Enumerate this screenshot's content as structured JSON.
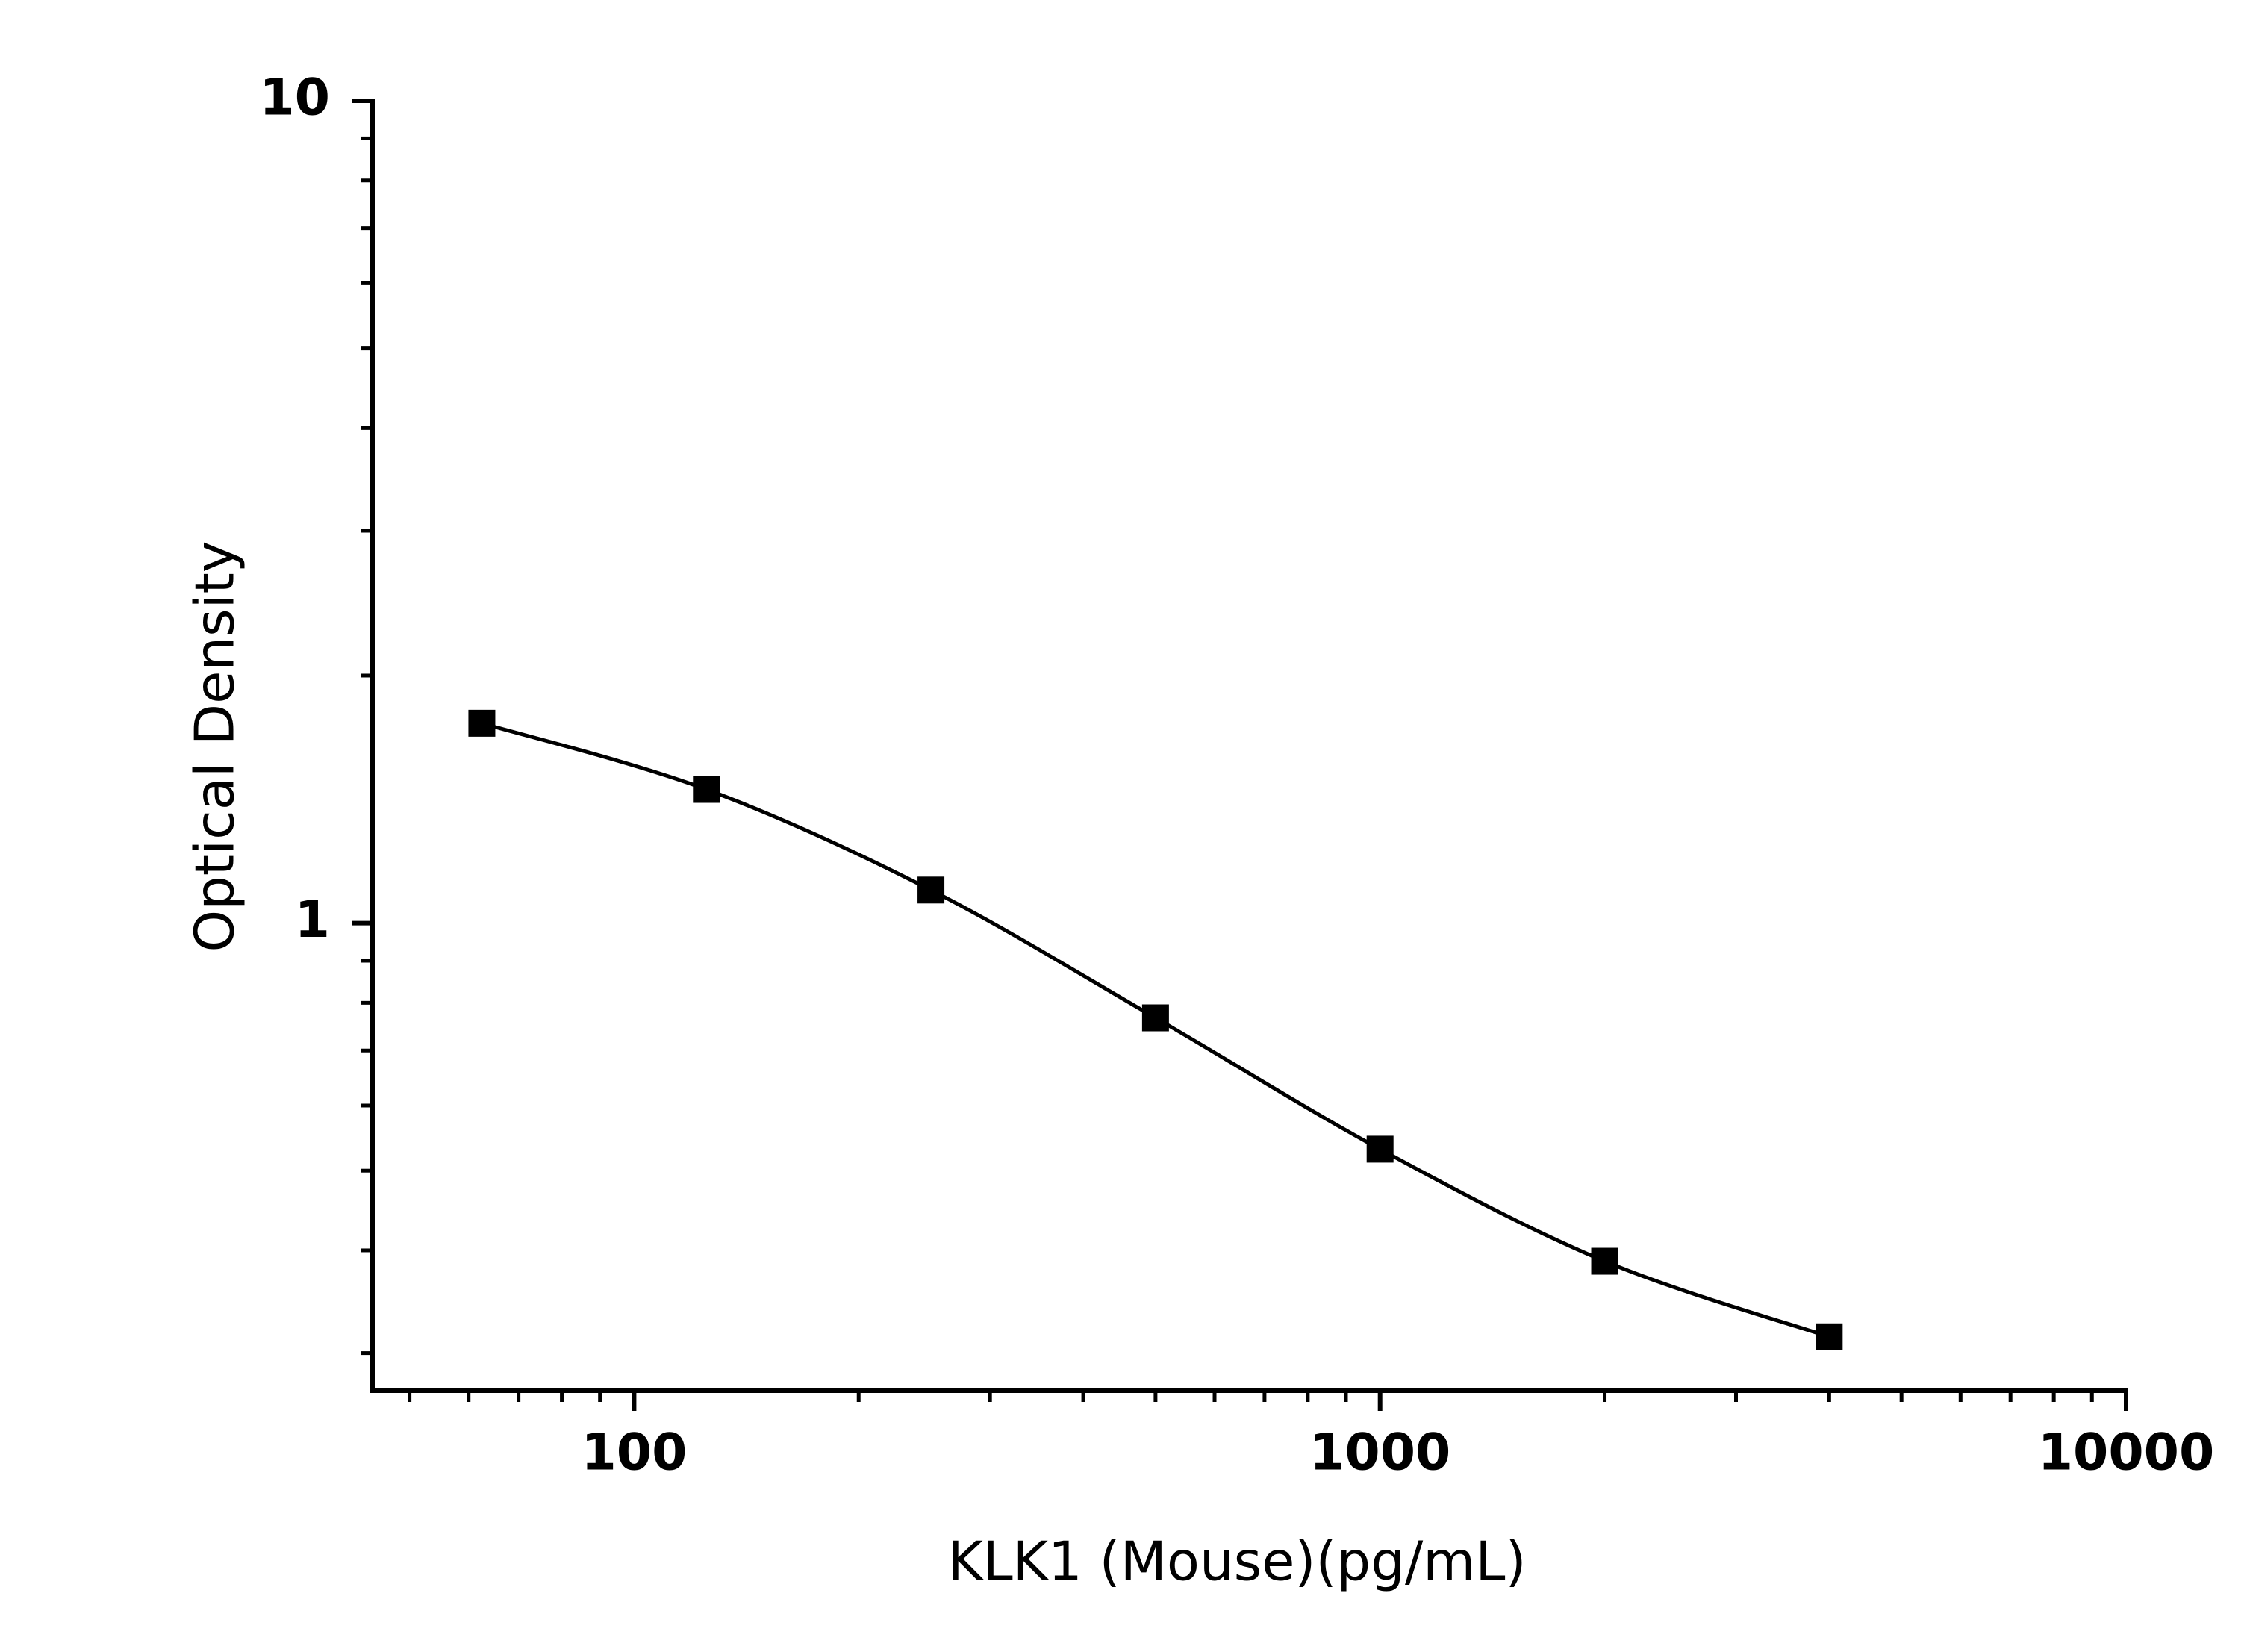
{
  "chart_data": {
    "type": "scatter",
    "x_label": "KLK1 (Mouse)(pg/mL)",
    "y_label": "Optical Density",
    "x": [
      62.5,
      125,
      250,
      500,
      1000,
      2000,
      4000
    ],
    "series": [
      {
        "color": "#000000",
        "values": [
          1.75,
          1.454,
          1.097,
          0.767,
          0.531,
          0.388,
          0.314
        ]
      }
    ],
    "xlim": [
      44.6,
      10000
    ],
    "ylim": [
      0.27,
      10
    ],
    "xticks": [
      100,
      1000,
      10000
    ],
    "yticks": [
      1,
      10
    ],
    "xscale": "log",
    "yscale": "log",
    "minor_ticks": true,
    "curve": "smooth",
    "grid": false
  }
}
